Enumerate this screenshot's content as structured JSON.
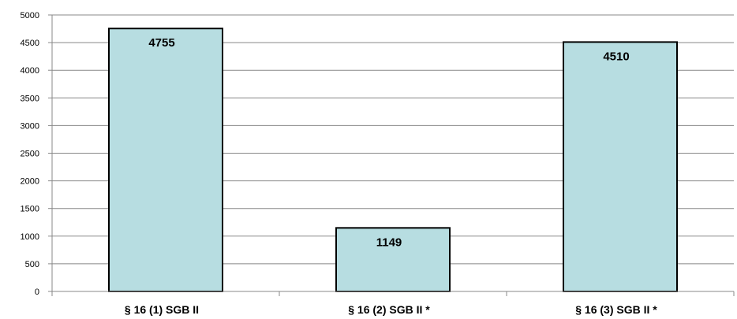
{
  "chart_data": {
    "type": "bar",
    "categories": [
      "§ 16 (1) SGB II",
      "§ 16 (2) SGB II *",
      "§ 16 (3) SGB II *"
    ],
    "values": [
      4755,
      1149,
      4510
    ],
    "data_labels": [
      "4755",
      "1149",
      "4510"
    ],
    "title": "",
    "xlabel": "",
    "ylabel": "",
    "ylim": [
      0,
      5000
    ],
    "yticks": [
      0,
      500,
      1000,
      1500,
      2000,
      2500,
      3000,
      3500,
      4000,
      4500,
      5000
    ],
    "grid": true,
    "legend": "none",
    "colors": {
      "bar_fill": "#b7dde1",
      "bar_stroke": "#000000",
      "grid": "#888888",
      "axis": "#888888"
    }
  }
}
